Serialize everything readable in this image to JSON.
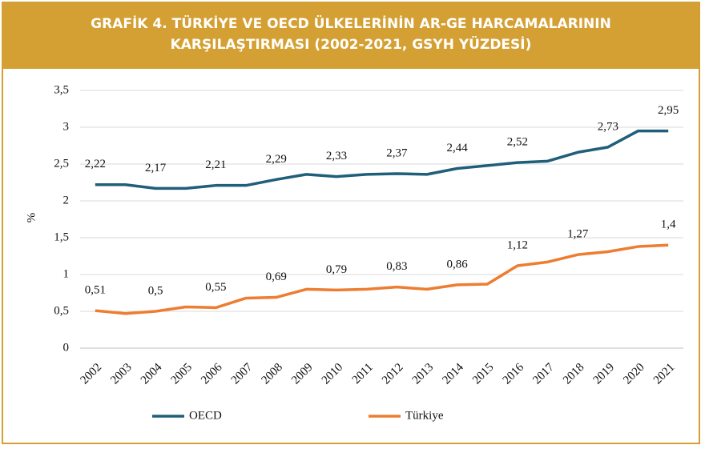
{
  "chart_data": {
    "type": "line",
    "title": "GRAFİK 4. TÜRKİYE VE OECD ÜLKELERİNİN AR-GE HARCAMALARININ KARŞILAŞTIRMASI (2002-2021, GSYH YÜZDESİ)",
    "y_label": "%",
    "categories": [
      "2002",
      "2003",
      "2004",
      "2005",
      "2006",
      "2007",
      "2008",
      "2009",
      "2010",
      "2011",
      "2012",
      "2013",
      "2014",
      "2015",
      "2016",
      "2017",
      "2018",
      "2019",
      "2020",
      "2021"
    ],
    "series": [
      {
        "name": "OECD",
        "color": "#1f5f7a",
        "values": [
          2.22,
          2.22,
          2.17,
          2.17,
          2.21,
          2.21,
          2.29,
          2.36,
          2.33,
          2.36,
          2.37,
          2.36,
          2.44,
          2.48,
          2.52,
          2.54,
          2.66,
          2.73,
          2.95,
          2.95
        ],
        "value_labels": [
          "2,22",
          null,
          "2,17",
          null,
          "2,21",
          null,
          "2,29",
          null,
          "2,33",
          null,
          "2,37",
          null,
          "2,44",
          null,
          "2,52",
          null,
          null,
          "2,73",
          null,
          "2,95"
        ]
      },
      {
        "name": "Türkiye",
        "color": "#ed7d31",
        "values": [
          0.51,
          0.47,
          0.5,
          0.56,
          0.55,
          0.68,
          0.69,
          0.8,
          0.79,
          0.8,
          0.83,
          0.8,
          0.86,
          0.87,
          1.12,
          1.17,
          1.27,
          1.31,
          1.38,
          1.4
        ],
        "value_labels": [
          "0,51",
          null,
          "0,5",
          null,
          "0,55",
          null,
          "0,69",
          null,
          "0,79",
          null,
          "0,83",
          null,
          "0,86",
          null,
          "1,12",
          null,
          "1,27",
          null,
          null,
          "1,4"
        ]
      }
    ],
    "ylim": [
      0,
      3.5
    ],
    "yticks": [
      0,
      {
        "value": 0.5,
        "label": "0,5"
      },
      1,
      {
        "value": 1.5,
        "label": "1,5"
      },
      2,
      {
        "value": 2.5,
        "label": "2,5"
      },
      3,
      {
        "value": 3.5,
        "label": "3,5"
      }
    ],
    "grid": true,
    "legend": "bottom"
  }
}
